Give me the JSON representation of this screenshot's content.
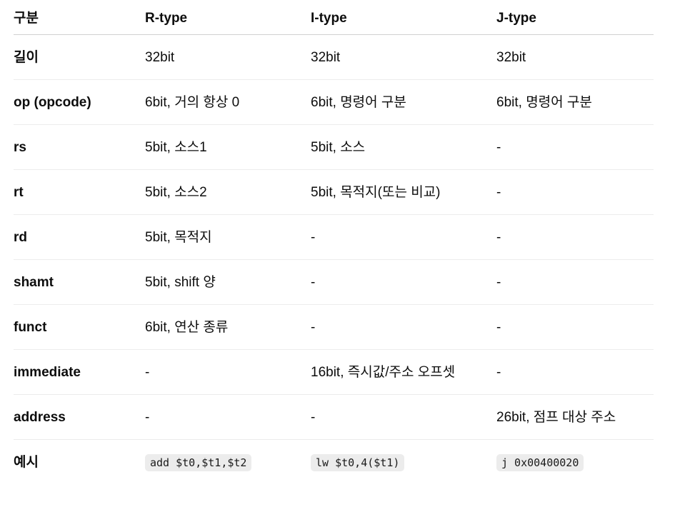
{
  "headers": [
    "구분",
    "R-type",
    "I-type",
    "J-type"
  ],
  "rows": [
    {
      "label": "길이",
      "r": "32bit",
      "i": "32bit",
      "j": "32bit"
    },
    {
      "label": "op (opcode)",
      "r": "6bit, 거의 항상 0",
      "i": "6bit, 명령어 구분",
      "j": "6bit, 명령어 구분"
    },
    {
      "label": "rs",
      "r": "5bit, 소스1",
      "i": "5bit, 소스",
      "j": "-"
    },
    {
      "label": "rt",
      "r": "5bit, 소스2",
      "i": "5bit, 목적지(또는 비교)",
      "j": "-"
    },
    {
      "label": "rd",
      "r": "5bit, 목적지",
      "i": "-",
      "j": "-"
    },
    {
      "label": "shamt",
      "r": "5bit, shift 양",
      "i": "-",
      "j": "-"
    },
    {
      "label": "funct",
      "r": "6bit, 연산 종류",
      "i": "-",
      "j": "-"
    },
    {
      "label": "immediate",
      "r": "-",
      "i": "16bit, 즉시값/주소 오프셋",
      "j": "-"
    },
    {
      "label": "address",
      "r": "-",
      "i": "-",
      "j": "26bit, 점프 대상 주소"
    },
    {
      "label": "예시",
      "r": "add $t0,$t1,$t2",
      "i": "lw $t0,4($t1)",
      "j": "j 0x00400020"
    }
  ]
}
